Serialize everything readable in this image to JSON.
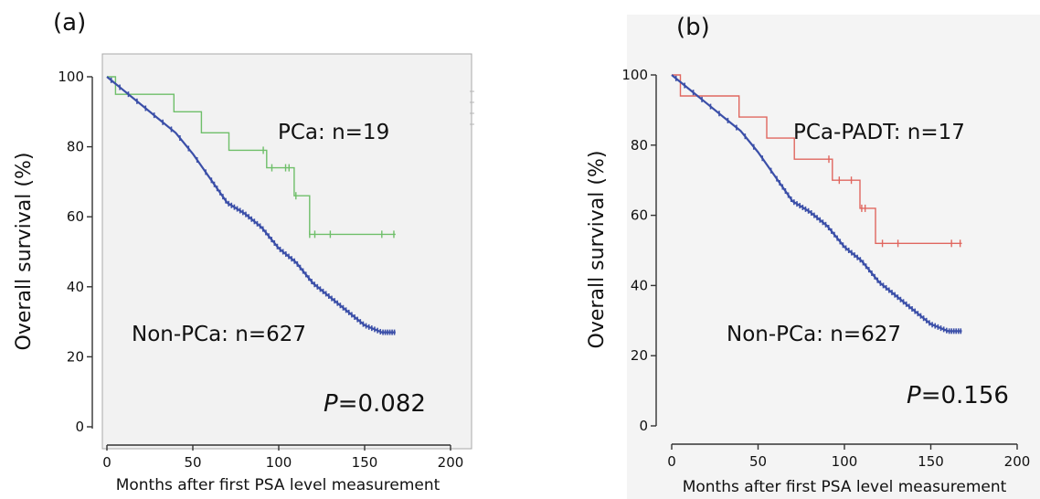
{
  "chart_data": [
    {
      "type": "line",
      "panel_label": "(a)",
      "xlabel": "Months after first PSA level measurement",
      "ylabel": "Overall survival (%)",
      "xlim": [
        0,
        200
      ],
      "ylim": [
        0,
        100
      ],
      "xticks": [
        0,
        50,
        100,
        150,
        200
      ],
      "yticks": [
        0,
        20,
        40,
        60,
        80,
        100
      ],
      "grid": false,
      "series": [
        {
          "name": "PCa",
          "color": "#6fbf6a",
          "step": true,
          "x": [
            0,
            5,
            5,
            39,
            39,
            55,
            55,
            71,
            71,
            93,
            93,
            109,
            109,
            118,
            118,
            168
          ],
          "y": [
            100,
            100,
            95,
            95,
            90,
            90,
            84,
            84,
            79,
            79,
            74,
            74,
            66,
            66,
            55,
            55
          ],
          "censor_x": [
            91,
            96,
            104,
            106,
            110,
            118,
            121,
            130,
            160,
            167
          ],
          "censor_y": [
            79,
            74,
            74,
            74,
            66,
            55,
            55,
            55,
            55,
            55
          ]
        },
        {
          "name": "Non-PCa",
          "color": "#3b4fa8",
          "step": false,
          "x": [
            0,
            10,
            20,
            30,
            40,
            50,
            60,
            70,
            80,
            90,
            100,
            110,
            120,
            130,
            140,
            150,
            160,
            168
          ],
          "y": [
            100,
            96,
            92,
            88,
            84,
            78,
            71,
            64,
            61,
            57,
            51,
            47,
            41,
            37,
            33,
            29,
            27,
            27
          ]
        }
      ],
      "annotations": [
        {
          "text": "PCa: n=19"
        },
        {
          "text": "Non-PCa: n=627"
        }
      ],
      "p_value": {
        "label": "P",
        "value": "=0.082"
      }
    },
    {
      "type": "line",
      "panel_label": "(b)",
      "xlabel": "Months after first PSA level measurement",
      "ylabel": "Overall survival (%)",
      "xlim": [
        0,
        200
      ],
      "ylim": [
        0,
        100
      ],
      "xticks": [
        0,
        50,
        100,
        150,
        200
      ],
      "yticks": [
        0,
        20,
        40,
        60,
        80,
        100
      ],
      "grid": false,
      "series": [
        {
          "name": "PCa-PADT",
          "color": "#e0675f",
          "step": true,
          "x": [
            0,
            5,
            5,
            39,
            39,
            55,
            55,
            71,
            71,
            93,
            93,
            109,
            109,
            118,
            118,
            168
          ],
          "y": [
            100,
            100,
            94,
            94,
            88,
            88,
            82,
            82,
            76,
            76,
            70,
            70,
            62,
            62,
            52,
            52
          ],
          "censor_x": [
            91,
            97,
            104,
            110,
            112,
            122,
            131,
            162,
            167
          ],
          "censor_y": [
            76,
            70,
            70,
            62,
            62,
            52,
            52,
            52,
            52
          ]
        },
        {
          "name": "Non-PCa",
          "color": "#3b4fa8",
          "step": false,
          "x": [
            0,
            10,
            20,
            30,
            40,
            50,
            60,
            70,
            80,
            90,
            100,
            110,
            120,
            130,
            140,
            150,
            160,
            168
          ],
          "y": [
            100,
            96,
            92,
            88,
            84,
            78,
            71,
            64,
            61,
            57,
            51,
            47,
            41,
            37,
            33,
            29,
            27,
            27
          ]
        }
      ],
      "annotations": [
        {
          "text": "PCa-PADT: n=17"
        },
        {
          "text": "Non-PCa: n=627"
        }
      ],
      "p_value": {
        "label": "P",
        "value": "=0.156"
      }
    }
  ]
}
